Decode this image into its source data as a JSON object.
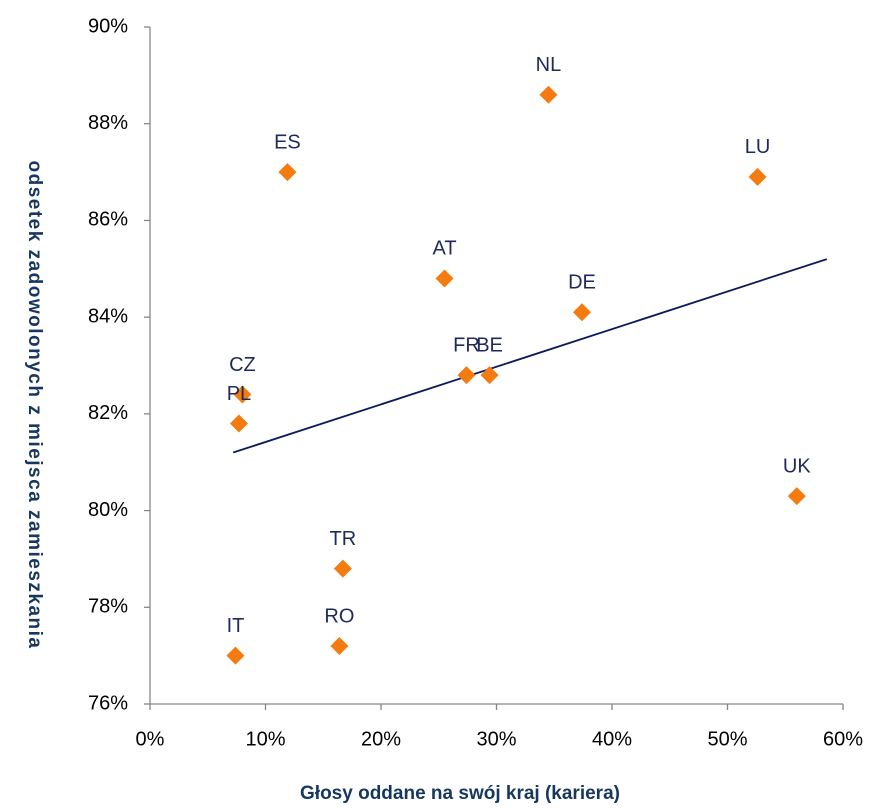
{
  "chart_data": {
    "type": "scatter",
    "xlabel": "Głosy oddane na swój kraj (kariera)",
    "ylabel": "odsetek zadowolonych z miejsca zamieszkania",
    "labels": [
      "NL",
      "ES",
      "LU",
      "AT",
      "DE",
      "FR",
      "BE",
      "CZ",
      "PL",
      "UK",
      "TR",
      "RO",
      "IT"
    ],
    "x": [
      34.5,
      11.9,
      52.6,
      25.5,
      37.4,
      27.4,
      29.4,
      8.0,
      7.7,
      56.0,
      16.7,
      16.4,
      7.4
    ],
    "values": [
      88.6,
      87.0,
      86.9,
      84.8,
      84.1,
      82.8,
      82.8,
      82.4,
      81.8,
      80.3,
      78.8,
      77.2,
      77.0
    ],
    "color": "#f47b0f",
    "trendline": {
      "x": [
        7.2,
        58.6
      ],
      "values": [
        81.2,
        85.2
      ],
      "color": "#0d1a5c"
    },
    "xlim": [
      0,
      60
    ],
    "xticks": [
      {
        "value": 0,
        "label": "0%"
      },
      {
        "value": 10,
        "label": "10%"
      },
      {
        "value": 20,
        "label": "20%"
      },
      {
        "value": 30,
        "label": "30%"
      },
      {
        "value": 40,
        "label": "40%"
      },
      {
        "value": 50,
        "label": "50%"
      },
      {
        "value": 60,
        "label": "60%"
      }
    ],
    "ylim": [
      76,
      90
    ],
    "yticks": [
      {
        "value": 76,
        "label": "76%"
      },
      {
        "value": 78,
        "label": "78%"
      },
      {
        "value": 80,
        "label": "80%"
      },
      {
        "value": 82,
        "label": "82%"
      },
      {
        "value": 84,
        "label": "84%"
      },
      {
        "value": 86,
        "label": "86%"
      },
      {
        "value": 88,
        "label": "88%"
      },
      {
        "value": 90,
        "label": "90%"
      }
    ]
  }
}
